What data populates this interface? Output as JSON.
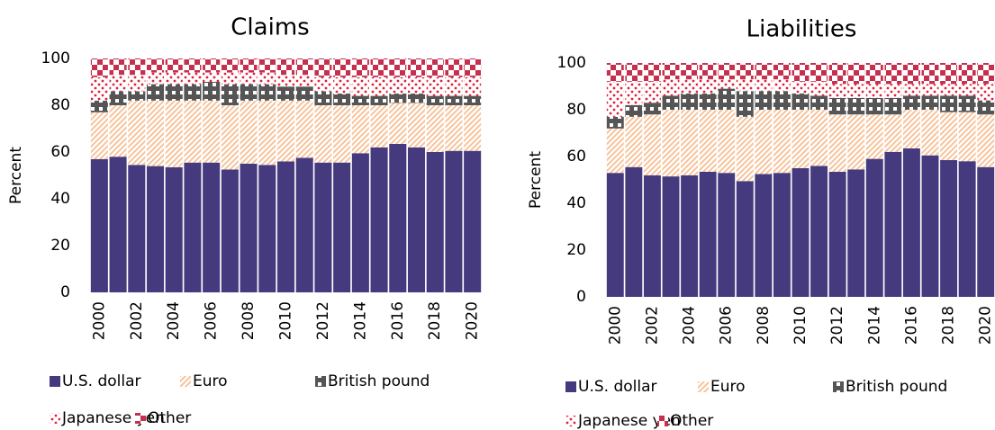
{
  "chart_data": [
    {
      "type": "stacked_bar",
      "title": "Claims",
      "ylabel": "Percent",
      "categories": [
        "2000",
        null,
        "2002",
        null,
        "2004",
        null,
        "2006",
        null,
        "2008",
        null,
        "2010",
        null,
        "2012",
        null,
        "2014",
        null,
        "2016",
        null,
        "2018",
        null,
        "2020"
      ],
      "ylim": [
        0,
        100
      ],
      "yticks": [
        0,
        20,
        40,
        60,
        80,
        100
      ],
      "series": [
        {
          "name": "U.S. dollar",
          "color": "#453a7e",
          "pattern": "solid",
          "values": [
            57,
            58,
            54.5,
            54,
            53.5,
            55.5,
            55.5,
            52.5,
            55,
            54.5,
            56,
            57.5,
            55.5,
            55.5,
            59.5,
            62,
            63.5,
            62,
            60,
            60.5,
            60.5
          ]
        },
        {
          "name": "Euro",
          "color": "#f7c39a",
          "pattern": "hatch",
          "values": [
            20,
            22,
            27.5,
            28,
            28.5,
            26.5,
            26.5,
            27.5,
            27,
            27.5,
            26,
            24.5,
            24.5,
            24.5,
            20.5,
            18,
            17.5,
            19,
            20,
            19.5,
            19.5
          ]
        },
        {
          "name": "British pound",
          "color": "#555555",
          "pattern": "blocks",
          "values": [
            5,
            6,
            4,
            7,
            7,
            7,
            8,
            9,
            7,
            7,
            6,
            6,
            6,
            5,
            4,
            4,
            4,
            4,
            4,
            4,
            4
          ]
        },
        {
          "name": "Japanese yen",
          "color": "#e0203a",
          "pattern": "dots",
          "values": [
            10,
            7,
            7,
            5,
            5,
            5,
            4,
            5,
            5,
            5,
            5,
            5,
            6,
            7,
            8,
            8,
            7,
            7,
            8,
            8,
            8
          ]
        },
        {
          "name": "Other",
          "color": "#c4304e",
          "pattern": "checker",
          "values": [
            8,
            7,
            7,
            6,
            6,
            6,
            6,
            6,
            6,
            6,
            7,
            7,
            8,
            8,
            8,
            8,
            8,
            8,
            8,
            8,
            8
          ]
        }
      ]
    },
    {
      "type": "stacked_bar",
      "title": "Liabilities",
      "ylabel": "Percent",
      "categories": [
        "2000",
        null,
        "2002",
        null,
        "2004",
        null,
        "2006",
        null,
        "2008",
        null,
        "2010",
        null,
        "2012",
        null,
        "2014",
        null,
        "2016",
        null,
        "2018",
        null,
        "2020"
      ],
      "ylim": [
        0,
        100
      ],
      "yticks": [
        0,
        20,
        40,
        60,
        80,
        100
      ],
      "series": [
        {
          "name": "U.S. dollar",
          "color": "#453a7e",
          "pattern": "solid",
          "values": [
            53,
            55.5,
            52,
            51.5,
            52,
            53.5,
            53,
            49.5,
            52.5,
            53,
            55,
            56,
            53.5,
            54.5,
            59,
            62,
            63.5,
            60.5,
            58.5,
            58,
            55.5
          ]
        },
        {
          "name": "Euro",
          "color": "#f7c39a",
          "pattern": "hatch",
          "values": [
            19,
            21.5,
            26,
            28.5,
            28,
            26.5,
            27,
            27.5,
            27.5,
            27,
            25,
            24,
            24.5,
            23.5,
            19,
            16,
            16.5,
            19.5,
            20.5,
            21,
            22.5
          ]
        },
        {
          "name": "British pound",
          "color": "#555555",
          "pattern": "blocks",
          "values": [
            5,
            5,
            5,
            6,
            7,
            7,
            9,
            11,
            8,
            8,
            7,
            6,
            7,
            7,
            7,
            7,
            6,
            6,
            7,
            7,
            6
          ]
        },
        {
          "name": "Japanese yen",
          "color": "#e0203a",
          "pattern": "dots",
          "values": [
            15,
            10,
            9,
            7,
            6,
            6,
            4,
            5,
            5,
            5,
            5,
            6,
            6,
            6,
            6,
            6,
            5,
            5,
            5,
            5,
            7
          ]
        },
        {
          "name": "Other",
          "color": "#c4304e",
          "pattern": "checker",
          "values": [
            8,
            8,
            8,
            7,
            7,
            7,
            7,
            7,
            7,
            7,
            8,
            8,
            9,
            9,
            9,
            9,
            9,
            9,
            9,
            9,
            9
          ]
        }
      ]
    }
  ]
}
